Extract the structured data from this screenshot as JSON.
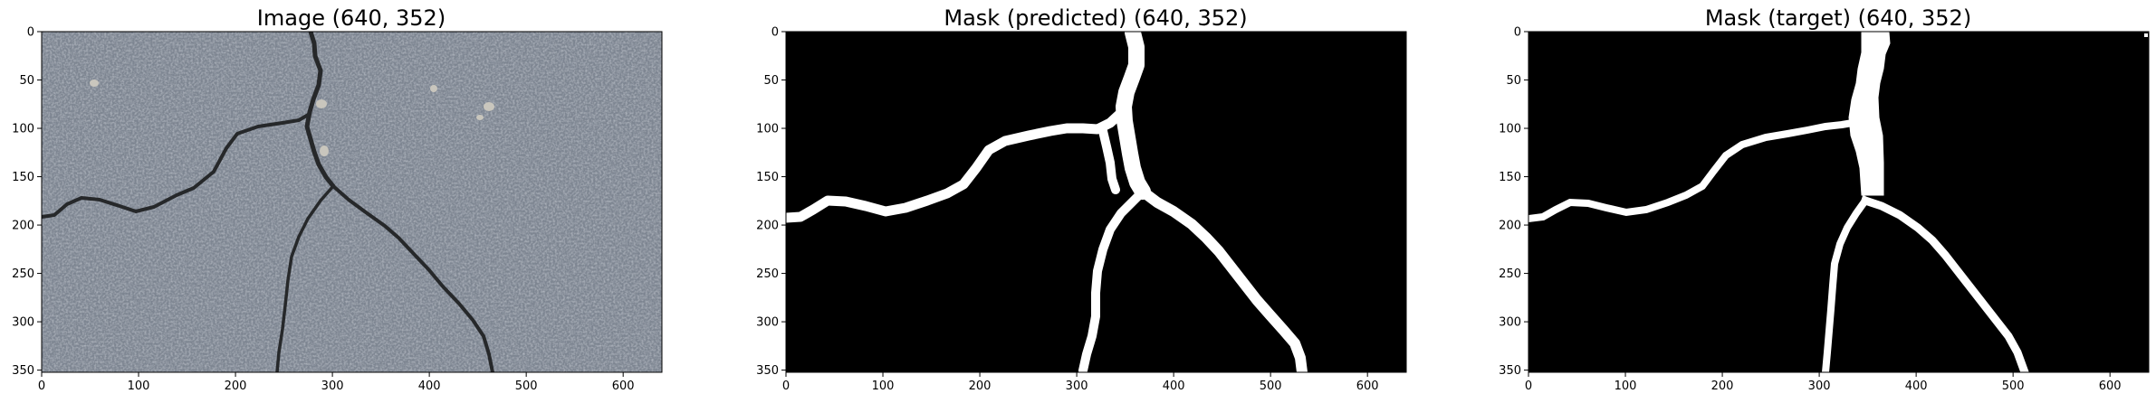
{
  "figure": {
    "panels": [
      {
        "id": "image",
        "title": "Image (640, 352)",
        "x_ticks": [
          "0",
          "100",
          "200",
          "300",
          "400",
          "500",
          "600"
        ],
        "y_ticks": [
          "0",
          "50",
          "100",
          "150",
          "200",
          "250",
          "300",
          "350"
        ]
      },
      {
        "id": "mask-predicted",
        "title": "Mask (predicted) (640, 352)",
        "x_ticks": [
          "0",
          "100",
          "200",
          "300",
          "400",
          "500",
          "600"
        ],
        "y_ticks": [
          "0",
          "50",
          "100",
          "150",
          "200",
          "250",
          "300",
          "350"
        ]
      },
      {
        "id": "mask-target",
        "title": "Mask (target) (640, 352)",
        "x_ticks": [
          "0",
          "100",
          "200",
          "300",
          "400",
          "500",
          "600"
        ],
        "y_ticks": [
          "0",
          "50",
          "100",
          "150",
          "200",
          "250",
          "300",
          "350"
        ]
      }
    ],
    "colors": {
      "asphalt": "#7f8793",
      "crack": "#2a2c2e",
      "mask_bg": "#000000",
      "mask_fg": "#ffffff"
    }
  }
}
